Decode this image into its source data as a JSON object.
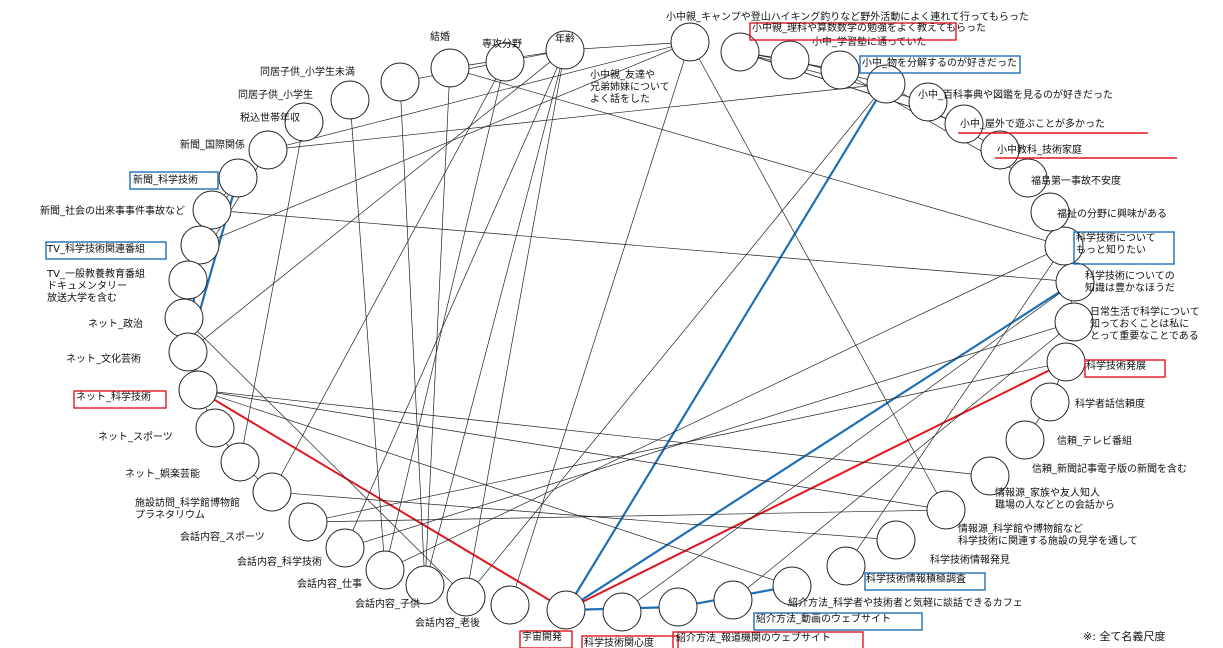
{
  "colors": {
    "red": "#e0161c",
    "blue": "#1f6fb5",
    "line": "#222222"
  },
  "footnote": "※: 全て名義尺度",
  "nodes": [
    {
      "id": "n01",
      "label": "年齢"
    },
    {
      "id": "n02",
      "label": "専攻分野"
    },
    {
      "id": "n03",
      "label": "結婚"
    },
    {
      "id": "n04",
      "label": "同居子供_小学生未満"
    },
    {
      "id": "n05",
      "label": "同居子供_小学生"
    },
    {
      "id": "n06",
      "label": "税込世帯年収"
    },
    {
      "id": "n07",
      "label": "新聞_国際関係"
    },
    {
      "id": "n08",
      "label": "新聞_科学技術",
      "highlight": "blue"
    },
    {
      "id": "n09",
      "label": "新聞_社会の出来事事件事故など"
    },
    {
      "id": "n10",
      "label": "TV_科学技術関連番組",
      "highlight": "blue"
    },
    {
      "id": "n11",
      "label": "TV_一般教養教育番組\nドキュメンタリー\n放送大学を含む"
    },
    {
      "id": "n12",
      "label": "ネット_政治"
    },
    {
      "id": "n13",
      "label": "ネット_文化芸術"
    },
    {
      "id": "n14",
      "label": "ネット_科学技術",
      "highlight": "red"
    },
    {
      "id": "n15",
      "label": "ネット_スポーツ"
    },
    {
      "id": "n16",
      "label": "ネット_娯楽芸能"
    },
    {
      "id": "n17",
      "label": "施設訪問_科学館博物館\nプラネタリウム"
    },
    {
      "id": "n18",
      "label": "会話内容_スポーツ"
    },
    {
      "id": "n19",
      "label": "会話内容_科学技術"
    },
    {
      "id": "n20",
      "label": "会話内容_仕事"
    },
    {
      "id": "n21",
      "label": "会話内容_子供"
    },
    {
      "id": "n22",
      "label": "会話内容_老後"
    },
    {
      "id": "n23",
      "label": "宇宙開発",
      "highlight": "red"
    },
    {
      "id": "n24",
      "label": "科学技術関心度",
      "highlight": "red"
    },
    {
      "id": "n25",
      "label": "紹介方法_報道機関のウェブサイト",
      "highlight": "red"
    },
    {
      "id": "n26",
      "label": "紹介方法_動画のウェブサイト",
      "highlight": "blue"
    },
    {
      "id": "n27",
      "label": "紹介方法_科学者や技術者と気軽に談話できるカフェ"
    },
    {
      "id": "n28",
      "label": "科学技術情報積極調査",
      "highlight": "blue"
    },
    {
      "id": "n29",
      "label": "科学技術情報発見"
    },
    {
      "id": "n30",
      "label": "情報源_科学館や博物館など\n科学技術に関連する施設の見学を通して"
    },
    {
      "id": "n31",
      "label": "情報源_家族や友人知人\n職場の人などとの会話から"
    },
    {
      "id": "n32",
      "label": "信頼_新聞記事電子版の新聞を含む"
    },
    {
      "id": "n33",
      "label": "信頼_テレビ番組"
    },
    {
      "id": "n34",
      "label": "科学者話信頼度"
    },
    {
      "id": "n35",
      "label": "科学技術発展",
      "highlight": "red"
    },
    {
      "id": "n36",
      "label": "日常生活で科学について\n知っておくことは私に\nとって重要なことである"
    },
    {
      "id": "n37",
      "label": "科学技術についての\n知識は豊かなほうだ"
    },
    {
      "id": "n38",
      "label": "科学技術について\nもっと知りたい",
      "highlight": "blue"
    },
    {
      "id": "n39",
      "label": "福祉の分野に興味がある"
    },
    {
      "id": "n40",
      "label": "福島第一事故不安度"
    },
    {
      "id": "n41",
      "label": "小中教科_技術家庭",
      "highlight": "red"
    },
    {
      "id": "n42",
      "label": "小中_屋外で遊ぶことが多かった",
      "highlight": "red"
    },
    {
      "id": "n43",
      "label": "小中_百科事典や図鑑を見るのが好きだった"
    },
    {
      "id": "n44",
      "label": "小中_物を分解するのが好きだった",
      "highlight": "blue"
    },
    {
      "id": "n45",
      "label": "小中_学習塾に通っていた"
    },
    {
      "id": "n46",
      "label": "小中親_理科や算数数学の勉強をよく教えてもらった",
      "highlight": "red"
    },
    {
      "id": "n47",
      "label": "小中親_キャンプや登山ハイキング釣りなど野外活動によく連れて行ってもらった"
    },
    {
      "id": "n48",
      "label": "小中親_友達や\n兄弟姉妹について\nよく話をした"
    }
  ],
  "edges": [
    [
      "n24",
      "n14",
      "red"
    ],
    [
      "n24",
      "n35",
      "red"
    ],
    [
      "n24",
      "n26",
      "blue"
    ],
    [
      "n24",
      "n37",
      "blue"
    ],
    [
      "n24",
      "n44",
      "blue"
    ],
    [
      "n26",
      "n28",
      "blue"
    ],
    [
      "n10",
      "n13",
      "blue"
    ],
    [
      "n13",
      "n08",
      "blue"
    ],
    [
      "n01",
      "n13",
      "black"
    ],
    [
      "n01",
      "n21",
      "black"
    ],
    [
      "n01",
      "n22",
      "black"
    ],
    [
      "n01",
      "n19",
      "black"
    ],
    [
      "n01",
      "n03",
      "black"
    ],
    [
      "n01",
      "n04",
      "black"
    ],
    [
      "n02",
      "n20",
      "black"
    ],
    [
      "n02",
      "n17",
      "black"
    ],
    [
      "n03",
      "n21",
      "black"
    ],
    [
      "n04",
      "n21",
      "black"
    ],
    [
      "n05",
      "n20",
      "black"
    ],
    [
      "n06",
      "n16",
      "black"
    ],
    [
      "n07",
      "n44",
      "black"
    ],
    [
      "n07",
      "n11",
      "black"
    ],
    [
      "n08",
      "n10",
      "black"
    ],
    [
      "n09",
      "n37",
      "black"
    ],
    [
      "n11",
      "n14",
      "black"
    ],
    [
      "n12",
      "n14",
      "black"
    ],
    [
      "n14",
      "n28",
      "black"
    ],
    [
      "n14",
      "n31",
      "black"
    ],
    [
      "n14",
      "n15",
      "black"
    ],
    [
      "n14",
      "n32",
      "black"
    ],
    [
      "n15",
      "n16",
      "black"
    ],
    [
      "n16",
      "n17",
      "black"
    ],
    [
      "n18",
      "n35",
      "black"
    ],
    [
      "n19",
      "n36",
      "black"
    ],
    [
      "n20",
      "n38",
      "black"
    ],
    [
      "n22",
      "n44",
      "black"
    ],
    [
      "n23",
      "n48",
      "black"
    ],
    [
      "n25",
      "n37",
      "black"
    ],
    [
      "n27",
      "n36",
      "black"
    ],
    [
      "n29",
      "n38",
      "black"
    ],
    [
      "n30",
      "n17",
      "black"
    ],
    [
      "n31",
      "n18",
      "black"
    ],
    [
      "n33",
      "n34",
      "black"
    ],
    [
      "n34",
      "n35",
      "black"
    ],
    [
      "n36",
      "n38",
      "black"
    ],
    [
      "n38",
      "n39",
      "black"
    ],
    [
      "n40",
      "n45",
      "black"
    ],
    [
      "n41",
      "n44",
      "black"
    ],
    [
      "n42",
      "n47",
      "black"
    ],
    [
      "n43",
      "n47",
      "black"
    ],
    [
      "n44",
      "n46",
      "black"
    ],
    [
      "n45",
      "n47",
      "black"
    ],
    [
      "n46",
      "n47",
      "black"
    ],
    [
      "n47",
      "n42",
      "black"
    ],
    [
      "n48",
      "n10",
      "black"
    ],
    [
      "n48",
      "n01",
      "black"
    ],
    [
      "n48",
      "n07",
      "black"
    ],
    [
      "n31",
      "n48",
      "black"
    ],
    [
      "n03",
      "n38",
      "black"
    ],
    [
      "n08",
      "n09",
      "black"
    ],
    [
      "n12",
      "n22",
      "black"
    ]
  ]
}
